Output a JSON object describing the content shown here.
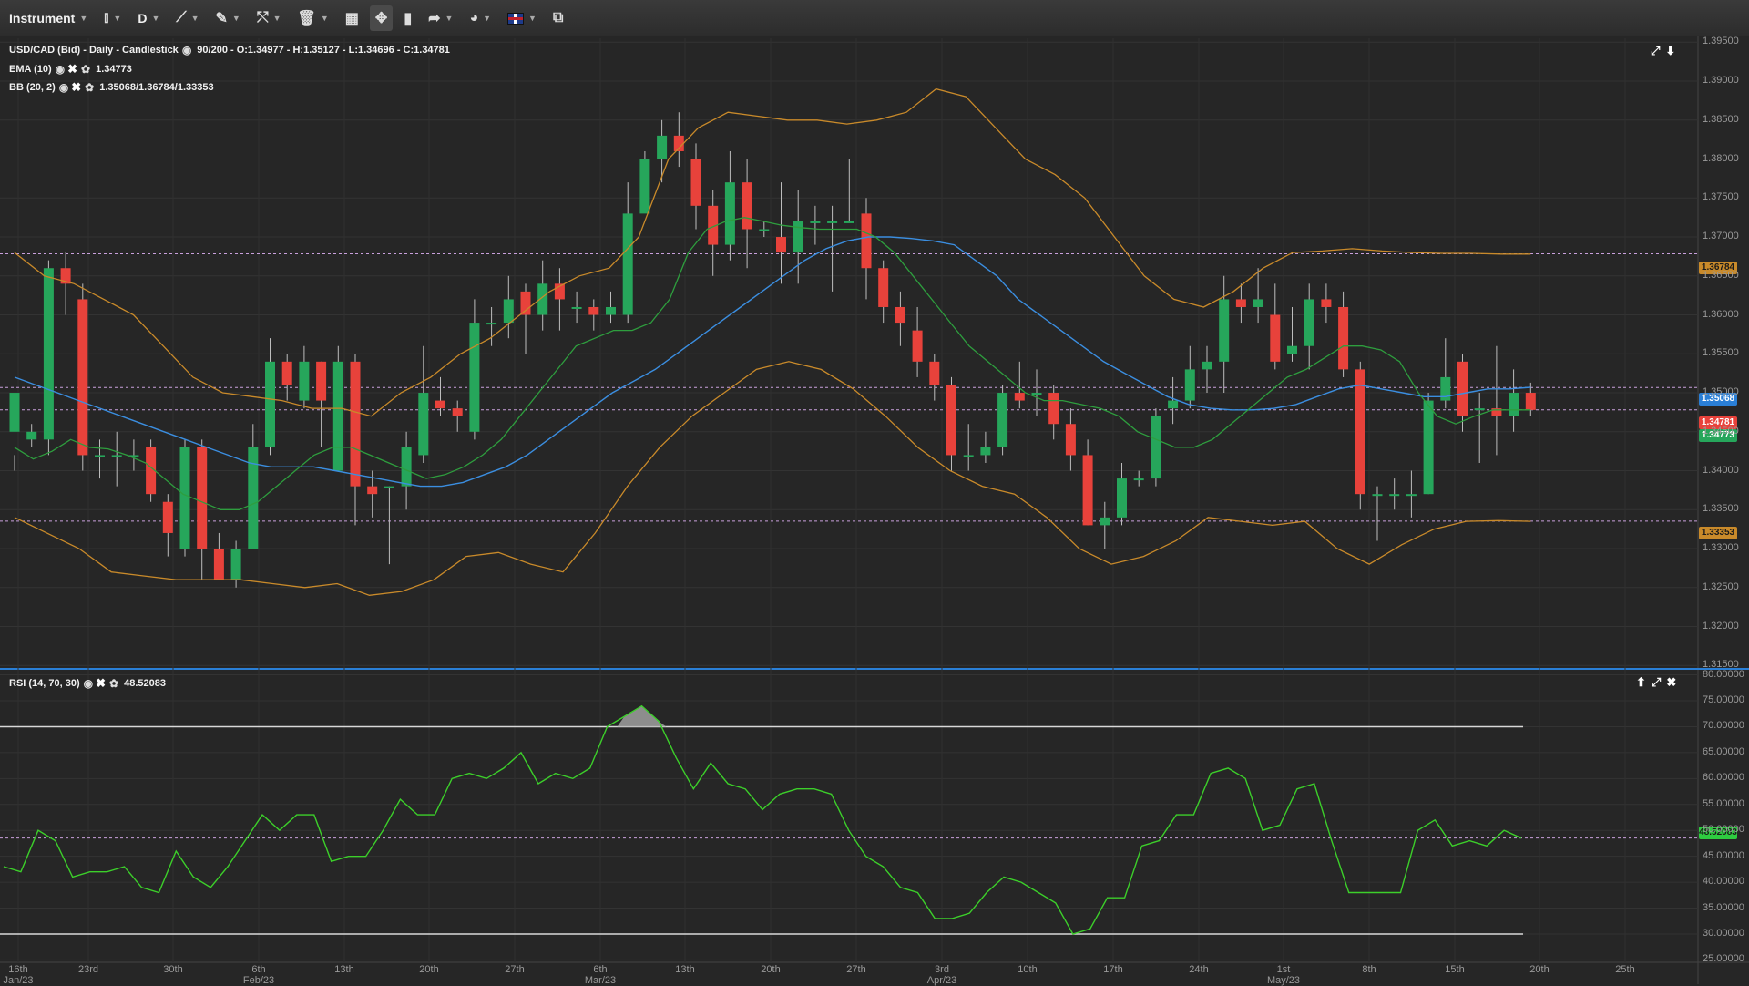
{
  "toolbar": {
    "instrument_label": "Instrument",
    "timeframe_label": "D"
  },
  "main_pane": {
    "legend_title": "USD/CAD (Bid) - Daily - Candlestick",
    "legend_ohlc": "90/200 - O:1.34977 - H:1.35127 - L:1.34696 - C:1.34781",
    "ema_label": "EMA (10)",
    "ema_value": "1.34773",
    "bb_label": "BB (20, 2)",
    "bb_value": "1.35068/1.36784/1.33353",
    "y_ticks": [
      "1.39500",
      "1.39000",
      "1.38500",
      "1.38000",
      "1.37500",
      "1.37000",
      "1.36500",
      "1.36000",
      "1.35500",
      "1.35000",
      "1.34500",
      "1.34000",
      "1.33500",
      "1.33000",
      "1.32500",
      "1.32000",
      "1.31500"
    ],
    "tag_bb_upper": "1.36784",
    "tag_bb_mid": "1.35068",
    "tag_close": "1.34781",
    "tag_ema": "1.34773",
    "tag_bb_lower": "1.33353"
  },
  "rsi_pane": {
    "legend_label": "RSI (14, 70, 30)",
    "legend_value": "48.52083",
    "y_ticks": [
      "80.00000",
      "75.00000",
      "70.00000",
      "65.00000",
      "60.00000",
      "55.00000",
      "50.00000",
      "45.00000",
      "40.00000",
      "35.00000",
      "30.00000",
      "25.00000"
    ],
    "tag_rsi": "48.52083"
  },
  "x_axis": [
    {
      "label": "16th",
      "sub": "Jan/23"
    },
    {
      "label": "23rd",
      "sub": ""
    },
    {
      "label": "30th",
      "sub": ""
    },
    {
      "label": "6th",
      "sub": "Feb/23"
    },
    {
      "label": "13th",
      "sub": ""
    },
    {
      "label": "20th",
      "sub": ""
    },
    {
      "label": "27th",
      "sub": ""
    },
    {
      "label": "6th",
      "sub": "Mar/23"
    },
    {
      "label": "13th",
      "sub": ""
    },
    {
      "label": "20th",
      "sub": ""
    },
    {
      "label": "27th",
      "sub": ""
    },
    {
      "label": "3rd",
      "sub": "Apr/23"
    },
    {
      "label": "10th",
      "sub": ""
    },
    {
      "label": "17th",
      "sub": ""
    },
    {
      "label": "24th",
      "sub": ""
    },
    {
      "label": "1st",
      "sub": "May/23"
    },
    {
      "label": "8th",
      "sub": ""
    },
    {
      "label": "15th",
      "sub": ""
    },
    {
      "label": "20th",
      "sub": ""
    },
    {
      "label": "25th",
      "sub": ""
    }
  ],
  "colors": {
    "bull": "#26a65b",
    "bear": "#e8423b",
    "ema": "#2e9e3e",
    "bb_mid": "#3b8ee0",
    "bb_band": "#c98a2a",
    "rsi": "#3ccf2a"
  },
  "chart_data": {
    "type": "candlestick",
    "candles": [
      [
        1.345,
        1.35,
        1.342,
        1.34
      ],
      [
        1.344,
        1.345,
        1.346,
        1.343
      ],
      [
        1.344,
        1.366,
        1.367,
        1.342
      ],
      [
        1.366,
        1.364,
        1.368,
        1.36
      ],
      [
        1.362,
        1.342,
        1.364,
        1.34
      ],
      [
        1.342,
        1.342,
        1.344,
        1.339
      ],
      [
        1.342,
        1.342,
        1.345,
        1.338
      ],
      [
        1.342,
        1.342,
        1.344,
        1.34
      ],
      [
        1.343,
        1.337,
        1.344,
        1.336
      ],
      [
        1.336,
        1.332,
        1.337,
        1.329
      ],
      [
        1.33,
        1.343,
        1.344,
        1.329
      ],
      [
        1.343,
        1.33,
        1.344,
        1.326
      ],
      [
        1.33,
        1.326,
        1.332,
        1.326
      ],
      [
        1.326,
        1.33,
        1.331,
        1.325
      ],
      [
        1.33,
        1.343,
        1.346,
        1.33
      ],
      [
        1.343,
        1.354,
        1.357,
        1.342
      ],
      [
        1.354,
        1.351,
        1.355,
        1.349
      ],
      [
        1.349,
        1.354,
        1.356,
        1.348
      ],
      [
        1.354,
        1.349,
        1.354,
        1.343
      ],
      [
        1.34,
        1.354,
        1.356,
        1.34
      ],
      [
        1.354,
        1.338,
        1.355,
        1.333
      ],
      [
        1.338,
        1.337,
        1.34,
        1.334
      ],
      [
        1.338,
        1.338,
        1.338,
        1.328
      ],
      [
        1.338,
        1.343,
        1.345,
        1.335
      ],
      [
        1.342,
        1.35,
        1.356,
        1.341
      ],
      [
        1.349,
        1.348,
        1.352,
        1.347
      ],
      [
        1.348,
        1.347,
        1.349,
        1.345
      ],
      [
        1.345,
        1.359,
        1.362,
        1.344
      ],
      [
        1.359,
        1.359,
        1.361,
        1.356
      ],
      [
        1.359,
        1.362,
        1.365,
        1.357
      ],
      [
        1.363,
        1.36,
        1.364,
        1.355
      ],
      [
        1.36,
        1.364,
        1.367,
        1.358
      ],
      [
        1.364,
        1.362,
        1.366,
        1.358
      ],
      [
        1.361,
        1.361,
        1.363,
        1.359
      ],
      [
        1.361,
        1.36,
        1.362,
        1.358
      ],
      [
        1.36,
        1.361,
        1.363,
        1.359
      ],
      [
        1.36,
        1.373,
        1.377,
        1.359
      ],
      [
        1.373,
        1.38,
        1.381,
        1.378
      ],
      [
        1.38,
        1.383,
        1.385,
        1.377
      ],
      [
        1.383,
        1.381,
        1.386,
        1.379
      ],
      [
        1.38,
        1.374,
        1.382,
        1.371
      ],
      [
        1.374,
        1.369,
        1.376,
        1.365
      ],
      [
        1.369,
        1.377,
        1.381,
        1.367
      ],
      [
        1.377,
        1.371,
        1.38,
        1.366
      ],
      [
        1.371,
        1.371,
        1.372,
        1.37
      ],
      [
        1.37,
        1.368,
        1.377,
        1.364
      ],
      [
        1.368,
        1.372,
        1.376,
        1.364
      ],
      [
        1.372,
        1.372,
        1.374,
        1.369
      ],
      [
        1.372,
        1.372,
        1.374,
        1.363
      ],
      [
        1.372,
        1.372,
        1.38,
        1.372
      ],
      [
        1.373,
        1.366,
        1.375,
        1.362
      ],
      [
        1.366,
        1.361,
        1.367,
        1.359
      ],
      [
        1.361,
        1.359,
        1.363,
        1.356
      ],
      [
        1.358,
        1.354,
        1.361,
        1.352
      ],
      [
        1.354,
        1.351,
        1.355,
        1.349
      ],
      [
        1.351,
        1.342,
        1.352,
        1.34
      ],
      [
        1.342,
        1.342,
        1.346,
        1.34
      ],
      [
        1.342,
        1.343,
        1.345,
        1.341
      ],
      [
        1.343,
        1.35,
        1.351,
        1.342
      ],
      [
        1.35,
        1.349,
        1.354,
        1.348
      ],
      [
        1.35,
        1.35,
        1.353,
        1.347
      ],
      [
        1.35,
        1.346,
        1.351,
        1.344
      ],
      [
        1.346,
        1.342,
        1.348,
        1.34
      ],
      [
        1.342,
        1.333,
        1.344,
        1.333
      ],
      [
        1.333,
        1.334,
        1.336,
        1.33
      ],
      [
        1.334,
        1.339,
        1.341,
        1.333
      ],
      [
        1.339,
        1.339,
        1.34,
        1.338
      ],
      [
        1.339,
        1.347,
        1.348,
        1.338
      ],
      [
        1.348,
        1.349,
        1.352,
        1.346
      ],
      [
        1.349,
        1.353,
        1.356,
        1.348
      ],
      [
        1.353,
        1.354,
        1.356,
        1.35
      ],
      [
        1.354,
        1.362,
        1.365,
        1.35
      ],
      [
        1.362,
        1.361,
        1.364,
        1.359
      ],
      [
        1.361,
        1.362,
        1.366,
        1.359
      ],
      [
        1.36,
        1.354,
        1.364,
        1.353
      ],
      [
        1.355,
        1.356,
        1.361,
        1.354
      ],
      [
        1.356,
        1.362,
        1.364,
        1.353
      ],
      [
        1.362,
        1.361,
        1.364,
        1.359
      ],
      [
        1.361,
        1.353,
        1.363,
        1.352
      ],
      [
        1.353,
        1.337,
        1.354,
        1.335
      ],
      [
        1.337,
        1.337,
        1.338,
        1.331
      ],
      [
        1.337,
        1.337,
        1.339,
        1.335
      ],
      [
        1.337,
        1.337,
        1.34,
        1.334
      ],
      [
        1.337,
        1.349,
        1.35,
        1.337
      ],
      [
        1.349,
        1.352,
        1.357,
        1.348
      ],
      [
        1.354,
        1.347,
        1.355,
        1.345
      ],
      [
        1.348,
        1.348,
        1.35,
        1.341
      ],
      [
        1.348,
        1.347,
        1.356,
        1.342
      ],
      [
        1.347,
        1.35,
        1.353,
        1.345
      ],
      [
        1.35,
        1.3478,
        1.3513,
        1.347
      ]
    ],
    "ema10": [
      1.343,
      1.3415,
      1.3425,
      1.344,
      1.343,
      1.3428,
      1.342,
      1.341,
      1.339,
      1.337,
      1.336,
      1.335,
      1.335,
      1.336,
      1.338,
      1.34,
      1.342,
      1.343,
      1.343,
      1.342,
      1.341,
      1.34,
      1.339,
      1.3395,
      1.3405,
      1.342,
      1.344,
      1.347,
      1.35,
      1.353,
      1.356,
      1.357,
      1.358,
      1.358,
      1.359,
      1.362,
      1.368,
      1.371,
      1.372,
      1.3725,
      1.372,
      1.3715,
      1.3712,
      1.371,
      1.371,
      1.371,
      1.37,
      1.368,
      1.365,
      1.362,
      1.359,
      1.356,
      1.354,
      1.352,
      1.35,
      1.349,
      1.349,
      1.3485,
      1.348,
      1.347,
      1.345,
      1.344,
      1.343,
      1.343,
      1.344,
      1.346,
      1.348,
      1.35,
      1.352,
      1.353,
      1.3545,
      1.356,
      1.356,
      1.3555,
      1.354,
      1.35,
      1.347,
      1.346,
      1.347,
      1.3478,
      1.3478,
      1.3478
    ],
    "bb_mid": [
      1.352,
      1.351,
      1.35,
      1.349,
      1.348,
      1.347,
      1.346,
      1.345,
      1.344,
      1.343,
      1.342,
      1.341,
      1.3405,
      1.3405,
      1.3405,
      1.34,
      1.3395,
      1.339,
      1.3385,
      1.338,
      1.338,
      1.3385,
      1.3395,
      1.3405,
      1.342,
      1.344,
      1.346,
      1.348,
      1.35,
      1.3515,
      1.353,
      1.355,
      1.357,
      1.359,
      1.361,
      1.363,
      1.365,
      1.367,
      1.3685,
      1.3695,
      1.37,
      1.37,
      1.3698,
      1.3695,
      1.369,
      1.367,
      1.365,
      1.362,
      1.36,
      1.358,
      1.356,
      1.354,
      1.3525,
      1.351,
      1.3495,
      1.3485,
      1.348,
      1.3478,
      1.3478,
      1.348,
      1.3485,
      1.3495,
      1.3505,
      1.351,
      1.3505,
      1.35,
      1.3495,
      1.3495,
      1.35,
      1.3505,
      1.3505,
      1.3507
    ],
    "bb_upper": [
      1.368,
      1.365,
      1.364,
      1.362,
      1.36,
      1.356,
      1.352,
      1.35,
      1.3495,
      1.349,
      1.348,
      1.348,
      1.347,
      1.35,
      1.352,
      1.355,
      1.357,
      1.36,
      1.363,
      1.365,
      1.366,
      1.37,
      1.38,
      1.384,
      1.386,
      1.3855,
      1.385,
      1.385,
      1.3845,
      1.385,
      1.386,
      1.389,
      1.388,
      1.384,
      1.38,
      1.378,
      1.375,
      1.37,
      1.365,
      1.362,
      1.361,
      1.363,
      1.366,
      1.368,
      1.3682,
      1.3685,
      1.3682,
      1.368,
      1.3679,
      1.3679,
      1.3678,
      1.3678
    ],
    "bb_lower": [
      1.334,
      1.332,
      1.33,
      1.327,
      1.3265,
      1.326,
      1.326,
      1.326,
      1.3255,
      1.325,
      1.3255,
      1.324,
      1.3245,
      1.326,
      1.329,
      1.3295,
      1.328,
      1.327,
      1.332,
      1.338,
      1.343,
      1.347,
      1.35,
      1.353,
      1.354,
      1.353,
      1.3505,
      1.347,
      1.343,
      1.34,
      1.338,
      1.337,
      1.334,
      1.33,
      1.328,
      1.329,
      1.331,
      1.334,
      1.3335,
      1.333,
      1.3335,
      1.33,
      1.328,
      1.3305,
      1.3325,
      1.3335,
      1.3336,
      1.3335
    ]
  }
}
